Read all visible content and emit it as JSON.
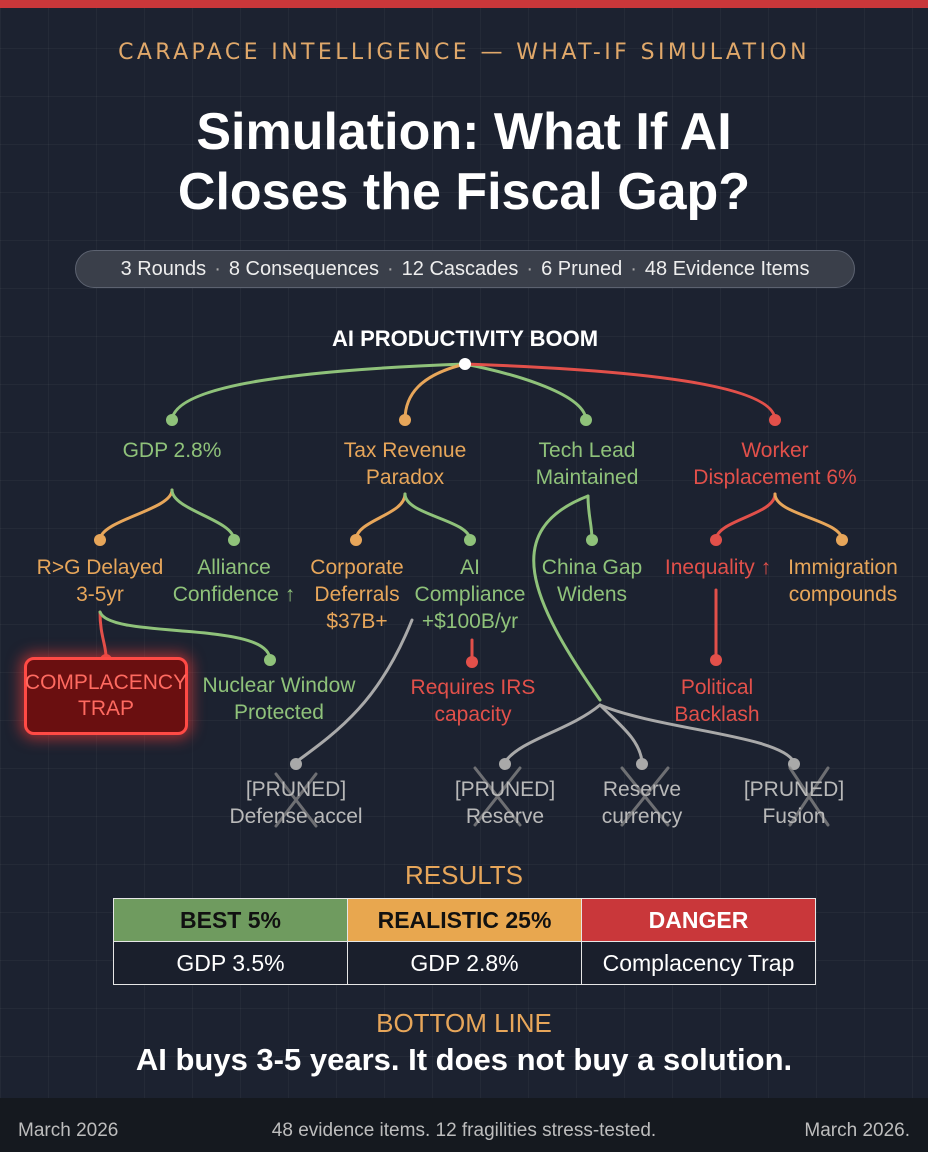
{
  "header": {
    "kicker": "CARAPACE INTELLIGENCE — WHAT-IF SIMULATION",
    "title": "Simulation: What If AI Closes the Fiscal Gap?",
    "stats": [
      "3 Rounds",
      "8 Consequences",
      "12 Cascades",
      "6 Pruned",
      "48 Evidence Items"
    ]
  },
  "tree": {
    "root": "AI PRODUCTIVITY BOOM",
    "branches": [
      {
        "label": "GDP 2.8%",
        "color": "green",
        "children": [
          {
            "label": "R>G Delayed\n3-5yr",
            "color": "orange",
            "children": [
              {
                "label": "COMPLACENCY\nTRAP",
                "color": "red",
                "highlight": true
              }
            ]
          },
          {
            "label": "Alliance\nConfidence ↑",
            "color": "green",
            "children": [
              {
                "label": "Nuclear Window\nProtected",
                "color": "green"
              }
            ]
          }
        ]
      },
      {
        "label": "Tax Revenue\nParadox",
        "color": "orange",
        "children": [
          {
            "label": "Corporate\nDeferrals\n$37B+",
            "color": "orange"
          },
          {
            "label": "AI\nCompliance\n+$100B/yr",
            "color": "green",
            "children": [
              {
                "label": "Requires IRS\ncapacity",
                "color": "red"
              }
            ]
          }
        ]
      },
      {
        "label": "Tech Lead\nMaintained",
        "color": "green",
        "children": [
          {
            "label": "China Gap\nWidens",
            "color": "green"
          }
        ]
      },
      {
        "label": "Worker\nDisplacement 6%",
        "color": "red",
        "children": [
          {
            "label": "Inequality ↑",
            "color": "red",
            "children": [
              {
                "label": "Political\nBacklash",
                "color": "red"
              }
            ]
          },
          {
            "label": "Immigration\ncompounds",
            "color": "orange"
          }
        ]
      }
    ],
    "pruned": [
      "[PRUNED]\nDefense accel",
      "[PRUNED]\nReserve",
      "Reserve\ncurrency",
      "[PRUNED]\nFusion"
    ]
  },
  "results": {
    "heading": "RESULTS",
    "columns": [
      {
        "header": "BEST 5%",
        "value": "GDP 3.5%",
        "color": "#6f9b5f"
      },
      {
        "header": "REALISTIC 25%",
        "value": "GDP 2.8%",
        "color": "#e8a74f"
      },
      {
        "header": "DANGER",
        "value": "Complacency Trap",
        "color": "#c9373a"
      }
    ]
  },
  "bottom_line": {
    "heading": "BOTTOM LINE",
    "text": "AI buys 3-5 years. It does not buy a solution."
  },
  "footer": {
    "left": "March 2026",
    "center": "48 evidence items. 12 fragilities stress-tested.",
    "right": "March 2026."
  },
  "colors": {
    "green": "#8fc27a",
    "orange": "#e7a65a",
    "red": "#e2504a",
    "gray": "#a9a9a9",
    "accent_bar": "#c9373a"
  }
}
